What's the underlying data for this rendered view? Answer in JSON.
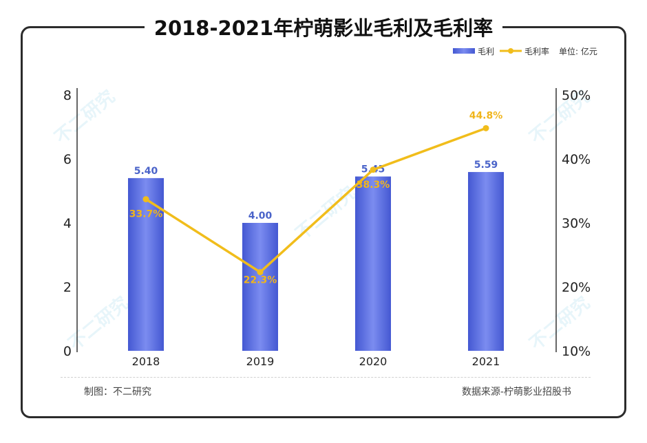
{
  "title": "2018-2021年柠萌影业毛利及毛利率",
  "legend": {
    "bar": "毛利",
    "line": "毛利率",
    "unit": "单位: 亿元"
  },
  "footer": {
    "left": "制图：不二研究",
    "right": "数据来源-柠萌影业招股书"
  },
  "watermark": "不二研究",
  "colors": {
    "bar": "#4f64d6",
    "line": "#f1bd1b",
    "frame": "#2b2b2b"
  },
  "chart_data": {
    "type": "bar",
    "categories": [
      "2018",
      "2019",
      "2020",
      "2021"
    ],
    "series": [
      {
        "name": "毛利",
        "type": "bar",
        "axis": "left",
        "values": [
          5.4,
          4.0,
          5.45,
          5.59
        ],
        "labels": [
          "5.40",
          "4.00",
          "5.45",
          "5.59"
        ]
      },
      {
        "name": "毛利率",
        "type": "line",
        "axis": "right",
        "values": [
          33.7,
          22.3,
          38.3,
          44.8
        ],
        "labels": [
          "33.7%",
          "22.3%",
          "38.3%",
          "44.8%"
        ]
      }
    ],
    "left_axis": {
      "min": 0,
      "max": 8,
      "ticks": [
        "0",
        "2",
        "4",
        "6",
        "8"
      ]
    },
    "right_axis": {
      "min": 10,
      "max": 50,
      "ticks": [
        "10%",
        "20%",
        "30%",
        "40%",
        "50%"
      ]
    }
  }
}
